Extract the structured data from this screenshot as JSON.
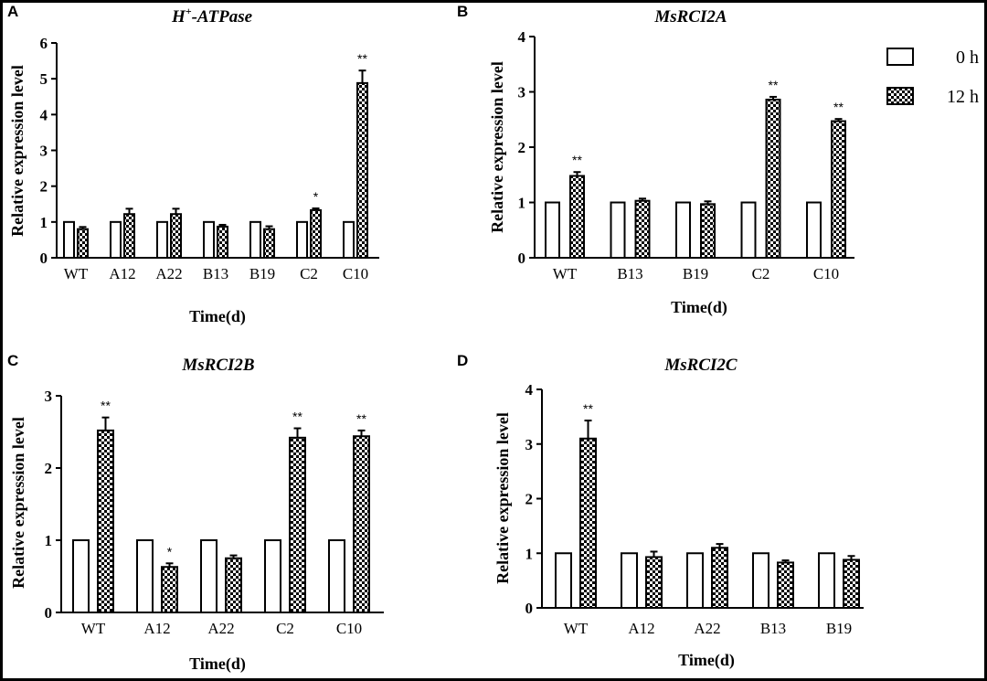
{
  "figure": {
    "legend": [
      {
        "label": "0 h",
        "pattern": "white"
      },
      {
        "label": "12 h",
        "pattern": "checker"
      }
    ]
  },
  "chart_data": [
    {
      "panel": "A",
      "type": "bar",
      "title_main": "H",
      "title_sup": "+",
      "title_rest": "-ATPase",
      "xlabel": "Time(d)",
      "ylabel": "Relative expression level",
      "ylim": [
        0,
        6
      ],
      "yticks": [
        0,
        1,
        2,
        3,
        4,
        5,
        6
      ],
      "categories": [
        "WT",
        "A12",
        "A22",
        "B13",
        "B19",
        "C2",
        "C10"
      ],
      "series": [
        {
          "name": "0 h",
          "values": [
            1,
            1,
            1,
            1,
            1,
            1,
            1
          ],
          "errors": [
            0,
            0,
            0,
            0,
            0,
            0,
            0
          ]
        },
        {
          "name": "12 h",
          "values": [
            0.8,
            1.22,
            1.22,
            0.87,
            0.8,
            1.33,
            4.88
          ],
          "errors": [
            0.06,
            0.15,
            0.15,
            0.05,
            0.08,
            0.05,
            0.35
          ]
        }
      ],
      "significance": [
        "",
        "",
        "",
        "",
        "",
        "*",
        "**"
      ]
    },
    {
      "panel": "B",
      "type": "bar",
      "title_main": "MsRCI2A",
      "title_sup": "",
      "title_rest": "",
      "xlabel": "Time(d)",
      "ylabel": "Relative expression level",
      "ylim": [
        0,
        4
      ],
      "yticks": [
        0,
        1,
        2,
        3,
        4
      ],
      "categories": [
        "WT",
        "B13",
        "B19",
        "C2",
        "C10"
      ],
      "series": [
        {
          "name": "0 h",
          "values": [
            1,
            1,
            1,
            1,
            1
          ],
          "errors": [
            0,
            0,
            0,
            0,
            0
          ]
        },
        {
          "name": "12 h",
          "values": [
            1.48,
            1.03,
            0.97,
            2.86,
            2.47
          ],
          "errors": [
            0.07,
            0.04,
            0.05,
            0.05,
            0.04
          ]
        }
      ],
      "significance": [
        "**",
        "",
        "",
        "**",
        "**"
      ]
    },
    {
      "panel": "C",
      "type": "bar",
      "title_main": "MsRCI2B",
      "title_sup": "",
      "title_rest": "",
      "xlabel": "Time(d)",
      "ylabel": "Relative expression level",
      "ylim": [
        0,
        3
      ],
      "yticks": [
        0,
        1,
        2,
        3
      ],
      "categories": [
        "WT",
        "A12",
        "A22",
        "C2",
        "C10"
      ],
      "series": [
        {
          "name": "0 h",
          "values": [
            1,
            1,
            1,
            1,
            1
          ],
          "errors": [
            0,
            0,
            0,
            0,
            0
          ]
        },
        {
          "name": "12 h",
          "values": [
            2.52,
            0.63,
            0.75,
            2.42,
            2.44
          ],
          "errors": [
            0.18,
            0.05,
            0.04,
            0.13,
            0.08
          ]
        }
      ],
      "significance": [
        "**",
        "*",
        "",
        "**",
        "**"
      ]
    },
    {
      "panel": "D",
      "type": "bar",
      "title_main": "MsRCI2C",
      "title_sup": "",
      "title_rest": "",
      "xlabel": "Time(d)",
      "ylabel": "Relative expression level",
      "ylim": [
        0,
        4
      ],
      "yticks": [
        0,
        1,
        2,
        3,
        4
      ],
      "categories": [
        "WT",
        "A12",
        "A22",
        "B13",
        "B19"
      ],
      "series": [
        {
          "name": "0 h",
          "values": [
            1,
            1,
            1,
            1,
            1
          ],
          "errors": [
            0,
            0,
            0,
            0,
            0
          ]
        },
        {
          "name": "12 h",
          "values": [
            3.1,
            0.93,
            1.1,
            0.83,
            0.88
          ],
          "errors": [
            0.33,
            0.1,
            0.07,
            0.04,
            0.07
          ]
        }
      ],
      "significance": [
        "**",
        "",
        "",
        "",
        ""
      ]
    }
  ]
}
